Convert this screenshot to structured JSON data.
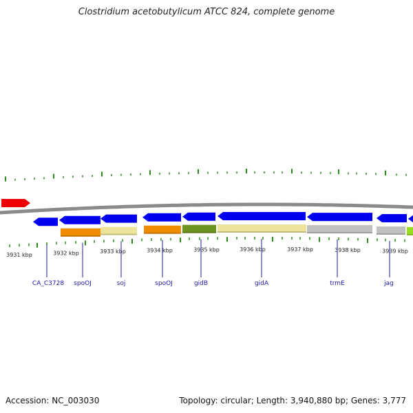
{
  "title": "Clostridium acetobutylicum ATCC 824, complete genome",
  "footer": {
    "accession": "Accession: NC_003030",
    "summary": "Topology: circular; Length: 3,940,880 bp; Genes: 3,777"
  },
  "colors": {
    "backbone": "#8a8a8a",
    "arrow": "#0000ee",
    "arrow_red": "#ee0000",
    "tick": "#2a8a1a",
    "gene_label": "#1a1aa8",
    "cog_orange": "#f08c00",
    "cog_khaki": "#ece49a",
    "cog_olive": "#6e9420",
    "cog_grey": "#c0c0c0",
    "cog_lime": "#99dd22"
  },
  "kbp_labels": [
    "3931 kbp",
    "3932 kbp",
    "3933 kbp",
    "3934 kbp",
    "3935 kbp",
    "3936 kbp",
    "3937 kbp",
    "3938 kbp",
    "3939 kbp"
  ],
  "genes": [
    {
      "name": "CA_C3728"
    },
    {
      "name": "spoOJ"
    },
    {
      "name": "soj"
    },
    {
      "name": "spoOJ"
    },
    {
      "name": "gidB"
    },
    {
      "name": "gidA"
    },
    {
      "name": "trmE"
    },
    {
      "name": "jag"
    }
  ]
}
